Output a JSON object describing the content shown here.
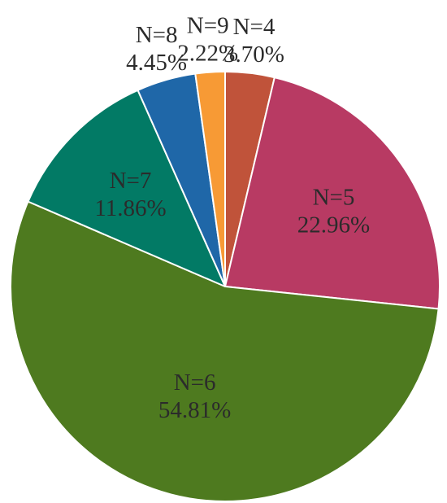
{
  "chart_data": {
    "type": "pie",
    "title": "",
    "start_angle_deg": 0,
    "direction": "clockwise",
    "slices": [
      {
        "label": "N=4",
        "value": 3.7,
        "value_text": "3.70%",
        "color": "#c0533a",
        "label_pos": "outside"
      },
      {
        "label": "N=5",
        "value": 22.96,
        "value_text": "22.96%",
        "color": "#b83a63",
        "label_pos": "inside"
      },
      {
        "label": "N=6",
        "value": 54.81,
        "value_text": "54.81%",
        "color": "#4e7a1f",
        "label_pos": "inside"
      },
      {
        "label": "N=7",
        "value": 11.86,
        "value_text": "11.86%",
        "color": "#027a65",
        "label_pos": "inside"
      },
      {
        "label": "N=8",
        "value": 4.45,
        "value_text": "4.45%",
        "color": "#1f67a8",
        "label_pos": "outside"
      },
      {
        "label": "N=9",
        "value": 2.22,
        "value_text": "2.22%",
        "color": "#f79a35",
        "label_pos": "outside"
      }
    ],
    "legend": "none"
  }
}
